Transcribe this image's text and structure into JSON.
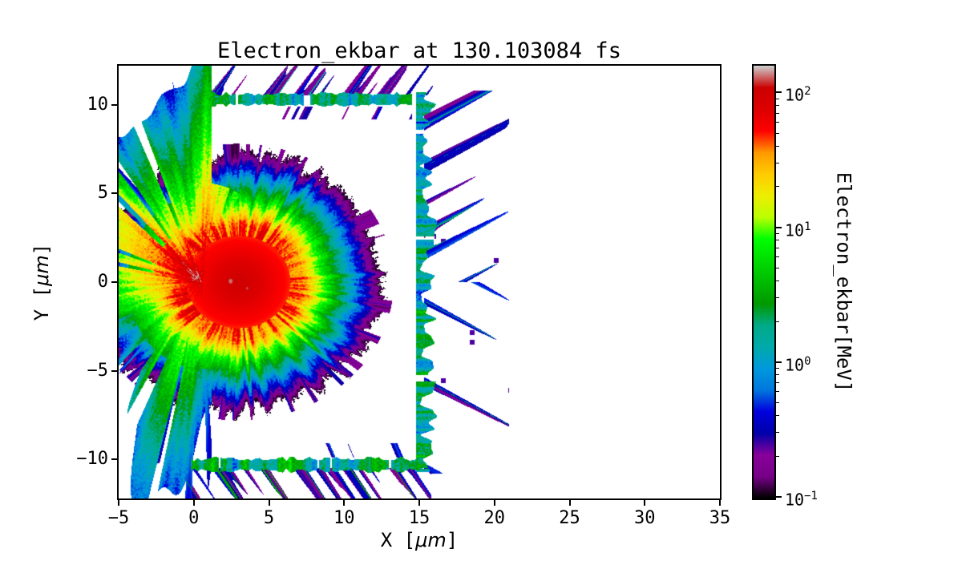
{
  "figure": {
    "title": "Electron_ekbar at 130.103084 fs",
    "background_color": "#ffffff"
  },
  "chart_data": {
    "type": "heatmap",
    "title": "Electron_ekbar at 130.103084 fs",
    "xlabel": {
      "prefix": "X [",
      "math": "μm",
      "suffix": "]"
    },
    "ylabel": {
      "prefix": "Y [",
      "math": "μm",
      "suffix": "]"
    },
    "xlim": [
      -5,
      35
    ],
    "ylim": [
      -12.2,
      12.2
    ],
    "xticks": [
      {
        "value": -5,
        "label": "−5"
      },
      {
        "value": 0,
        "label": "0"
      },
      {
        "value": 5,
        "label": "5"
      },
      {
        "value": 10,
        "label": "10"
      },
      {
        "value": 15,
        "label": "15"
      },
      {
        "value": 20,
        "label": "20"
      },
      {
        "value": 25,
        "label": "25"
      },
      {
        "value": 30,
        "label": "30"
      },
      {
        "value": 35,
        "label": "35"
      }
    ],
    "yticks": [
      {
        "value": 10,
        "label": "10"
      },
      {
        "value": 5,
        "label": "5"
      },
      {
        "value": 0,
        "label": "0"
      },
      {
        "value": -5,
        "label": "−5"
      },
      {
        "value": -10,
        "label": "−10"
      }
    ],
    "grid": false,
    "legend": null,
    "colorbar": {
      "label": "Electron_ekbar[MeV]",
      "scale": "log",
      "colormap": "nipy_spectral",
      "vmin": 0.097,
      "vmax": 158,
      "ticks": [
        {
          "value": 100,
          "label_base": "10",
          "label_exp": "2"
        },
        {
          "value": 10,
          "label_base": "10",
          "label_exp": "1"
        },
        {
          "value": 1,
          "label_base": "10",
          "label_exp": "0"
        },
        {
          "value": 0.1,
          "label_base": "10",
          "label_exp": "−1"
        }
      ]
    },
    "features": {
      "description": "2D map of electron mean kinetic energy (ekbar) from a laser-plasma PIC simulation at t = 130.103084 fs; laser-heated spot on target front with hemispherical expansion shell, backward-directed electron jets, and heated channel walls.",
      "hot_core": {
        "center_um": [
          2.8,
          0.0
        ],
        "peak_MeV": 150,
        "red_zone_radius_um": 3.5,
        "bright_spots_um": [
          [
            2.45,
            0.05
          ],
          [
            3.55,
            -0.35
          ]
        ]
      },
      "expansion_shell": {
        "center_um": [
          3.0,
          0.0
        ],
        "outer_radius_x_um": 9.5,
        "outer_radius_y_um": 7.0,
        "energy_range_MeV": [
          0.1,
          10
        ]
      },
      "backward_jets": {
        "origin_um": [
          0.5,
          0.0
        ],
        "direction": "-x",
        "max_reach_um": 15,
        "energy_range_MeV": [
          0.3,
          100
        ]
      },
      "target_channel": {
        "front_x_um": 0,
        "rear_x_um": 15,
        "top_y_um": 10,
        "bottom_y_um": -10,
        "wall_energy_MeV": [
          0.3,
          3
        ]
      }
    }
  }
}
